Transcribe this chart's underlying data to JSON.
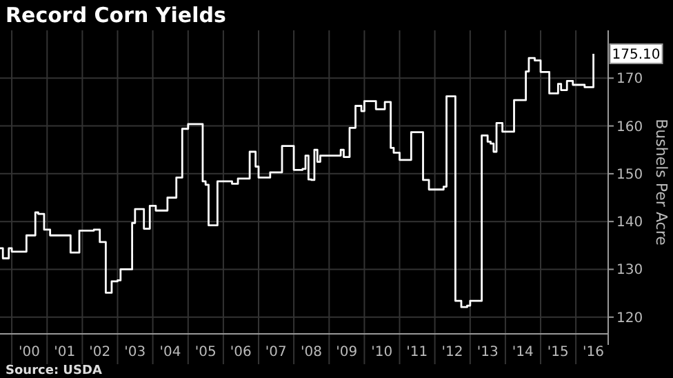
{
  "chart_data": {
    "type": "step",
    "title": "Record Corn Yields",
    "ylabel": "Bushels Per Acre",
    "annotations": [
      {
        "text": "175.10",
        "x": "2016-07",
        "y": 175.1
      },
      "Source: USDA"
    ],
    "x": [
      "1999-09",
      "1999-10",
      "1999-12",
      "2000-01",
      "2000-04",
      "2000-06",
      "2000-07",
      "2000-09",
      "2000-10",
      "2000-12",
      "2001-02",
      "2001-08",
      "2001-09",
      "2001-12",
      "2002-05",
      "2002-07",
      "2002-09",
      "2002-11",
      "2003-01",
      "2003-02",
      "2003-05",
      "2003-06",
      "2003-07",
      "2003-10",
      "2003-12",
      "2004-02",
      "2004-04",
      "2004-06",
      "2004-07",
      "2004-09",
      "2004-11",
      "2005-01",
      "2005-04",
      "2005-06",
      "2005-07",
      "2005-08",
      "2005-11",
      "2006-04",
      "2006-06",
      "2006-07",
      "2006-10",
      "2006-12",
      "2007-01",
      "2007-04",
      "2007-05",
      "2007-07",
      "2007-09",
      "2008-01",
      "2008-04",
      "2008-05",
      "2008-06",
      "2008-07",
      "2008-08",
      "2008-09",
      "2008-10",
      "2009-04",
      "2009-05",
      "2009-06",
      "2009-07",
      "2009-08",
      "2009-10",
      "2009-12",
      "2010-01",
      "2010-04",
      "2010-05",
      "2010-07",
      "2010-08",
      "2010-10",
      "2010-11",
      "2011-01",
      "2011-04",
      "2011-05",
      "2011-07",
      "2011-09",
      "2011-11",
      "2012-04",
      "2012-05",
      "2012-06",
      "2012-08",
      "2012-10",
      "2012-12",
      "2013-01",
      "2013-04",
      "2013-05",
      "2013-07",
      "2013-08",
      "2013-09",
      "2013-10",
      "2013-12",
      "2014-03",
      "2014-04",
      "2014-06",
      "2014-08",
      "2014-09",
      "2014-11",
      "2015-01",
      "2015-03",
      "2015-04",
      "2015-06",
      "2015-07",
      "2015-08",
      "2015-10",
      "2015-12",
      "2016-03",
      "2016-04",
      "2016-06",
      "2016-07"
    ],
    "series": [
      {
        "color": "#ffffff",
        "values": [
          134.4,
          132.3,
          134.4,
          133.7,
          133.7,
          137.1,
          137.1,
          141.9,
          141.6,
          138.3,
          137.1,
          137.1,
          133.5,
          138.1,
          138.3,
          135.7,
          125.1,
          127.5,
          127.7,
          130,
          130,
          139.7,
          142.6,
          138.5,
          143.3,
          142.3,
          142.3,
          145,
          145,
          149.2,
          159.4,
          160.4,
          160.4,
          148.4,
          147.7,
          139.2,
          148.4,
          147.9,
          149,
          149,
          154.6,
          151.5,
          149.2,
          149.2,
          150.3,
          150.3,
          155.8,
          150.8,
          151,
          153.8,
          148.8,
          148.7,
          155,
          152.5,
          153.8,
          153.8,
          155,
          153.5,
          153.5,
          159.6,
          164.2,
          163.1,
          165.2,
          165.2,
          163.5,
          163.5,
          165,
          155.4,
          154.4,
          152.9,
          152.9,
          158.7,
          158.7,
          148.7,
          146.7,
          147.3,
          166.2,
          166.2,
          123.4,
          122.1,
          122.4,
          123.4,
          123.4,
          158,
          156.7,
          156.3,
          154.6,
          160.6,
          158.8,
          158.8,
          165.4,
          165.4,
          171.4,
          174.2,
          173.7,
          171.3,
          171.3,
          166.8,
          166.8,
          168.8,
          167.5,
          169.4,
          168.6,
          168.6,
          168.1,
          168.1,
          175.1
        ]
      }
    ],
    "xlim": [
      "1999-09",
      "2016-12"
    ],
    "ylim": [
      116.5,
      180
    ],
    "xticks": [
      {
        "value": "2000-01",
        "label": null
      },
      {
        "value": "2000-07",
        "label": "'00"
      },
      {
        "value": "2001-01",
        "label": null
      },
      {
        "value": "2001-07",
        "label": "'01"
      },
      {
        "value": "2002-01",
        "label": null
      },
      {
        "value": "2002-07",
        "label": "'02"
      },
      {
        "value": "2003-01",
        "label": null
      },
      {
        "value": "2003-07",
        "label": "'03"
      },
      {
        "value": "2004-01",
        "label": null
      },
      {
        "value": "2004-07",
        "label": "'04"
      },
      {
        "value": "2005-01",
        "label": null
      },
      {
        "value": "2005-07",
        "label": "'05"
      },
      {
        "value": "2006-01",
        "label": null
      },
      {
        "value": "2006-07",
        "label": "'06"
      },
      {
        "value": "2007-01",
        "label": null
      },
      {
        "value": "2007-07",
        "label": "'07"
      },
      {
        "value": "2008-01",
        "label": null
      },
      {
        "value": "2008-07",
        "label": "'08"
      },
      {
        "value": "2009-01",
        "label": null
      },
      {
        "value": "2009-07",
        "label": "'09"
      },
      {
        "value": "2010-01",
        "label": null
      },
      {
        "value": "2010-07",
        "label": "'10"
      },
      {
        "value": "2011-01",
        "label": null
      },
      {
        "value": "2011-07",
        "label": "'11"
      },
      {
        "value": "2012-01",
        "label": null
      },
      {
        "value": "2012-07",
        "label": "'12"
      },
      {
        "value": "2013-01",
        "label": null
      },
      {
        "value": "2013-07",
        "label": "'13"
      },
      {
        "value": "2014-01",
        "label": null
      },
      {
        "value": "2014-07",
        "label": "'14"
      },
      {
        "value": "2015-01",
        "label": null
      },
      {
        "value": "2015-07",
        "label": "'15"
      },
      {
        "value": "2016-01",
        "label": null
      },
      {
        "value": "2016-07",
        "label": "'16"
      }
    ],
    "yticks": [
      120,
      130,
      140,
      150,
      160,
      170
    ],
    "grid": true
  }
}
